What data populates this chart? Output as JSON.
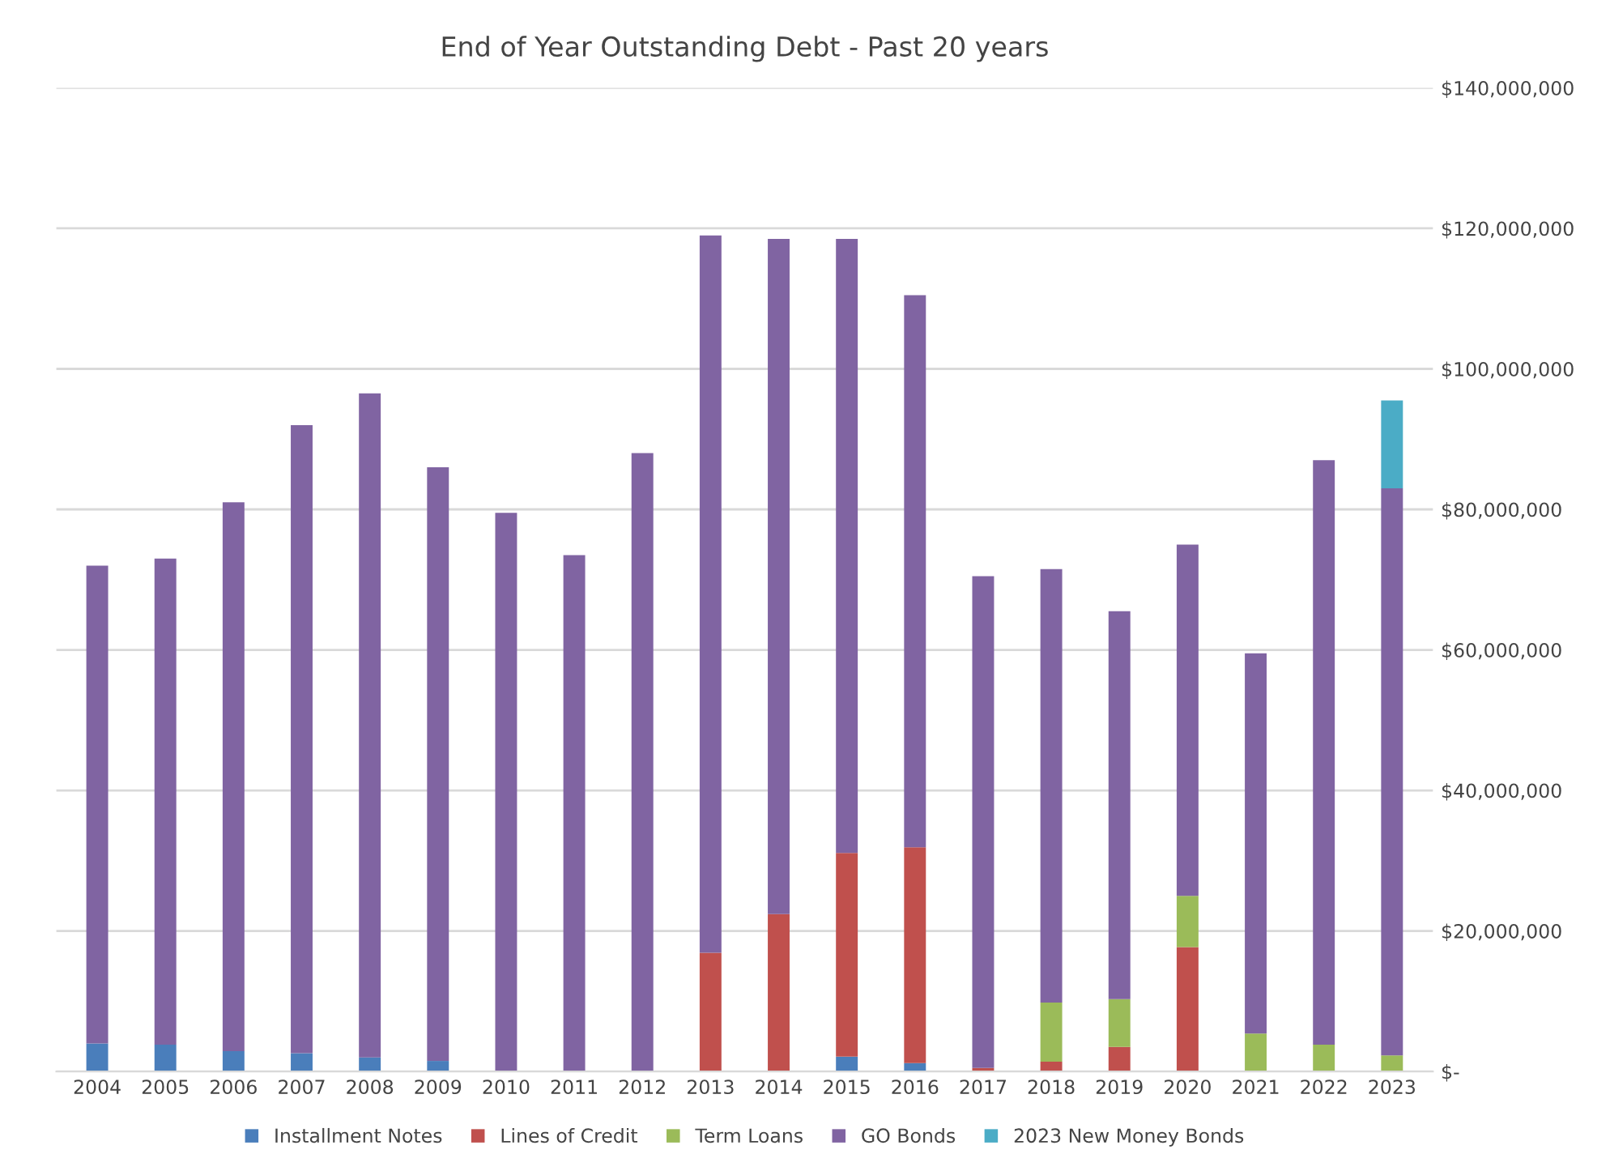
{
  "chart_data": {
    "type": "bar",
    "stacked": true,
    "title": "End of Year Outstanding Debt - Past 20 years",
    "categories": [
      "2004",
      "2005",
      "2006",
      "2007",
      "2008",
      "2009",
      "2010",
      "2011",
      "2012",
      "2013",
      "2014",
      "2015",
      "2016",
      "2017",
      "2018",
      "2019",
      "2020",
      "2021",
      "2022",
      "2023"
    ],
    "series": [
      {
        "name": "Installment Notes",
        "color": "#4a7ebb",
        "values": [
          4000000,
          3800000,
          2900000,
          2600000,
          2000000,
          1500000,
          0,
          0,
          0,
          0,
          0,
          2100000,
          1200000,
          0,
          0,
          0,
          0,
          0,
          0,
          0
        ]
      },
      {
        "name": "Lines of Credit",
        "color": "#c0504d",
        "values": [
          0,
          0,
          0,
          0,
          0,
          0,
          0,
          0,
          0,
          16900000,
          22400000,
          29000000,
          30700000,
          500000,
          1400000,
          3500000,
          17700000,
          0,
          0,
          0
        ]
      },
      {
        "name": "Term Loans",
        "color": "#9bbb59",
        "values": [
          0,
          0,
          0,
          0,
          0,
          0,
          0,
          0,
          0,
          0,
          0,
          0,
          0,
          0,
          8400000,
          6800000,
          7300000,
          5400000,
          3800000,
          2300000
        ]
      },
      {
        "name": "GO Bonds",
        "color": "#8064a2",
        "values": [
          68000000,
          69200000,
          78100000,
          89400000,
          94500000,
          84500000,
          79500000,
          73500000,
          88000000,
          102100000,
          96100000,
          87400000,
          78600000,
          70000000,
          61700000,
          55200000,
          50000000,
          54100000,
          83200000,
          80700000
        ]
      },
      {
        "name": "2023 New Money Bonds",
        "color": "#4bacc6",
        "values": [
          0,
          0,
          0,
          0,
          0,
          0,
          0,
          0,
          0,
          0,
          0,
          0,
          0,
          0,
          0,
          0,
          0,
          0,
          0,
          12500000
        ]
      }
    ],
    "ylim": [
      0,
      140000000
    ],
    "yticks": [
      {
        "value": 0,
        "label": "$-"
      },
      {
        "value": 20000000,
        "label": "$20,000,000"
      },
      {
        "value": 40000000,
        "label": "$40,000,000"
      },
      {
        "value": 60000000,
        "label": "$60,000,000"
      },
      {
        "value": 80000000,
        "label": "$80,000,000"
      },
      {
        "value": 100000000,
        "label": "$100,000,000"
      },
      {
        "value": 120000000,
        "label": "$120,000,000"
      },
      {
        "value": 140000000,
        "label": "$140,000,000"
      }
    ],
    "grid": "y",
    "legend": "bottom"
  }
}
